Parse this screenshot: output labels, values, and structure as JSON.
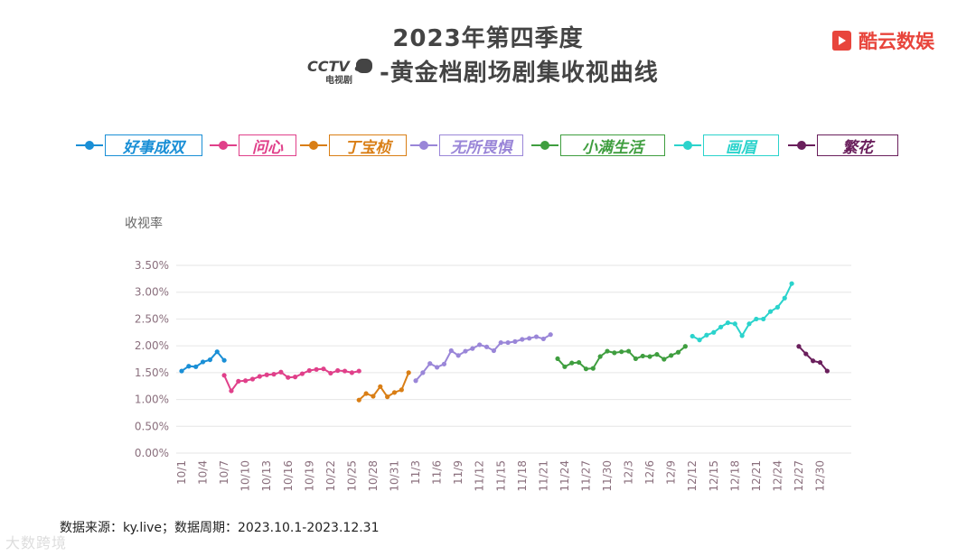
{
  "header": {
    "title_line1": "2023年第四季度",
    "title_line2": "-黄金档剧场剧集收视曲线",
    "cctv_logo_text": "CCTV 8",
    "cctv_logo_sub": "电视剧",
    "brand_name": "酷云数娱"
  },
  "footer": {
    "source": "数据来源：ky.live；数据周期：2023.10.1-2023.12.31",
    "watermark": "大数跨境"
  },
  "colors": {
    "好事成双": "#1a8fd6",
    "问心": "#e0408a",
    "丁宝桢": "#d97e15",
    "无所畏惧": "#9a86d8",
    "小满生活": "#3f9e3f",
    "画眉": "#2bd3cc",
    "繁花": "#6a1f5c",
    "grid": "#e6e6e6",
    "axis_text": "#8a6f7d"
  },
  "chart_data": {
    "type": "line",
    "title": "2023年第四季度 -黄金档剧场剧集收视曲线",
    "ylabel": "收视率",
    "xlabel": "",
    "ylim": [
      0,
      3.5
    ],
    "yticks": [
      "0.00%",
      "0.50%",
      "1.00%",
      "1.50%",
      "2.00%",
      "2.50%",
      "3.00%",
      "3.50%"
    ],
    "xticks": [
      "10/1",
      "10/4",
      "10/7",
      "10/10",
      "10/13",
      "10/16",
      "10/19",
      "10/22",
      "10/25",
      "10/28",
      "10/31",
      "11/3",
      "11/6",
      "11/9",
      "11/12",
      "11/15",
      "11/18",
      "11/21",
      "11/24",
      "11/27",
      "11/30",
      "12/3",
      "12/6",
      "12/9",
      "12/12",
      "12/15",
      "12/18",
      "12/21",
      "12/24",
      "12/27",
      "12/30"
    ],
    "x_start": "10/1",
    "grid": true,
    "legend_position": "top",
    "series": [
      {
        "name": "好事成双",
        "start_day": 0,
        "values": [
          1.53,
          1.62,
          1.61,
          1.7,
          1.74,
          1.89,
          1.73
        ]
      },
      {
        "name": "问心",
        "start_day": 6,
        "values": [
          1.45,
          1.16,
          1.34,
          1.35,
          1.38,
          1.43,
          1.46,
          1.47,
          1.51,
          1.41,
          1.42,
          1.48,
          1.54,
          1.56,
          1.57,
          1.49,
          1.54,
          1.53,
          1.5,
          1.53
        ]
      },
      {
        "name": "丁宝桢",
        "start_day": 25,
        "values": [
          0.99,
          1.11,
          1.06,
          1.24,
          1.05,
          1.13,
          1.18,
          1.5
        ]
      },
      {
        "name": "无所畏惧",
        "start_day": 33,
        "values": [
          1.35,
          1.5,
          1.67,
          1.6,
          1.66,
          1.91,
          1.82,
          1.9,
          1.95,
          2.02,
          1.98,
          1.91,
          2.06,
          2.06,
          2.08,
          2.12,
          2.14,
          2.17,
          2.13,
          2.21
        ]
      },
      {
        "name": "小满生活",
        "start_day": 53,
        "values": [
          1.76,
          1.61,
          1.68,
          1.69,
          1.57,
          1.58,
          1.8,
          1.9,
          1.87,
          1.89,
          1.9,
          1.76,
          1.81,
          1.8,
          1.84,
          1.75,
          1.82,
          1.88,
          1.99
        ]
      },
      {
        "name": "画眉",
        "start_day": 72,
        "values": [
          2.18,
          2.11,
          2.2,
          2.25,
          2.35,
          2.43,
          2.41,
          2.19,
          2.41,
          2.5,
          2.5,
          2.64,
          2.72,
          2.89,
          3.16
        ]
      },
      {
        "name": "繁花",
        "start_day": 87,
        "values": [
          1.99,
          1.85,
          1.72,
          1.69,
          1.53
        ]
      }
    ]
  }
}
